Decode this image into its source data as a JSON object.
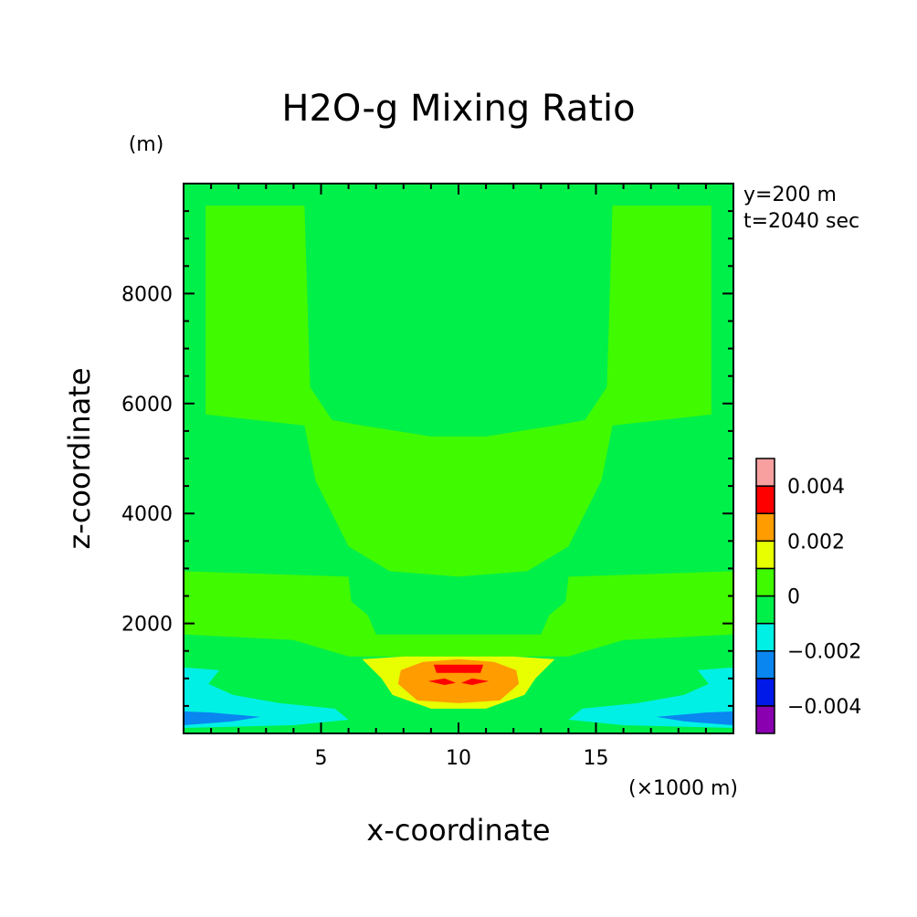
{
  "chart_data": {
    "type": "heatmap",
    "title": "H2O-g Mixing Ratio",
    "xlabel": "x-coordinate",
    "ylabel": "z-coordinate",
    "x_unit_label": "(×1000 m)",
    "y_unit_label": "(m)",
    "annotations": [
      "y=200 m",
      "t=2040 sec"
    ],
    "xlim": [
      0,
      20
    ],
    "ylim": [
      0,
      10000
    ],
    "x_ticks": [
      5,
      10,
      15
    ],
    "y_ticks": [
      2000,
      4000,
      6000,
      8000
    ],
    "colorbar": {
      "levels": [
        {
          "min": -0.005,
          "max": -0.004,
          "color": "#8a00b0"
        },
        {
          "min": -0.004,
          "max": -0.003,
          "color": "#0019e8"
        },
        {
          "min": -0.003,
          "max": -0.002,
          "color": "#0a86f0"
        },
        {
          "min": -0.002,
          "max": -0.001,
          "color": "#00f0e6"
        },
        {
          "min": -0.001,
          "max": 0.0,
          "color": "#00f04a"
        },
        {
          "min": 0.0,
          "max": 0.001,
          "color": "#40fa00"
        },
        {
          "min": 0.001,
          "max": 0.002,
          "color": "#e8ff00"
        },
        {
          "min": 0.002,
          "max": 0.003,
          "color": "#ff9c00"
        },
        {
          "min": 0.003,
          "max": 0.004,
          "color": "#ff0000"
        },
        {
          "min": 0.004,
          "max": 0.005,
          "color": "#f8a0a0"
        }
      ],
      "tick_labels": [
        "0.004",
        "0.002",
        "0",
        "−0.002",
        "−0.004"
      ],
      "tick_values": [
        0.004,
        0.002,
        0,
        -0.002,
        -0.004
      ]
    },
    "regions": [
      {
        "level": "0 to 0.001",
        "color": "#40fa00",
        "points": [
          [
            0.8,
            9600
          ],
          [
            4.4,
            9600
          ],
          [
            4.6,
            6300
          ],
          [
            5.4,
            5700
          ],
          [
            6.5,
            5600
          ],
          [
            9,
            5400
          ],
          [
            11,
            5400
          ],
          [
            13.5,
            5600
          ],
          [
            14.6,
            5700
          ],
          [
            15.4,
            6300
          ],
          [
            15.6,
            9600
          ],
          [
            19.2,
            9600
          ],
          [
            19.2,
            5800
          ],
          [
            15.6,
            5600
          ],
          [
            15.2,
            4600
          ],
          [
            14,
            3400
          ],
          [
            12.5,
            2950
          ],
          [
            10,
            2850
          ],
          [
            7.5,
            2950
          ],
          [
            6,
            3400
          ],
          [
            4.8,
            4600
          ],
          [
            4.4,
            5600
          ],
          [
            0.8,
            5800
          ]
        ]
      },
      {
        "level": "0 to 0.001",
        "color": "#40fa00",
        "points": [
          [
            0,
            2950
          ],
          [
            6,
            2850
          ],
          [
            6.1,
            2400
          ],
          [
            6.7,
            2150
          ],
          [
            7,
            1800
          ],
          [
            13,
            1800
          ],
          [
            13.3,
            2150
          ],
          [
            13.9,
            2400
          ],
          [
            14,
            2850
          ],
          [
            20,
            2950
          ],
          [
            20,
            1800
          ],
          [
            16,
            1700
          ],
          [
            14,
            1400
          ],
          [
            6,
            1400
          ],
          [
            4,
            1700
          ],
          [
            0,
            1800
          ]
        ]
      },
      {
        "level": "0.001 to 0.002",
        "color": "#e8ff00",
        "points": [
          [
            6.5,
            1350
          ],
          [
            8,
            1400
          ],
          [
            10,
            1400
          ],
          [
            12,
            1400
          ],
          [
            13.5,
            1350
          ],
          [
            12.8,
            1000
          ],
          [
            12.4,
            700
          ],
          [
            11,
            450
          ],
          [
            9,
            450
          ],
          [
            7.6,
            700
          ],
          [
            7.2,
            1000
          ]
        ]
      },
      {
        "level": "0.002 to 0.003",
        "color": "#ff9c00",
        "points": [
          [
            7.9,
            1150
          ],
          [
            8.7,
            1300
          ],
          [
            10,
            1350
          ],
          [
            11.3,
            1300
          ],
          [
            12.1,
            1150
          ],
          [
            12.2,
            900
          ],
          [
            11.5,
            600
          ],
          [
            10,
            550
          ],
          [
            8.5,
            600
          ],
          [
            7.8,
            900
          ]
        ]
      },
      {
        "level": "0.003 to 0.004",
        "color": "#ff0000",
        "points": [
          [
            9.1,
            1250
          ],
          [
            10.9,
            1250
          ],
          [
            10.8,
            1100
          ],
          [
            9.2,
            1100
          ]
        ]
      },
      {
        "level": "0.003 to 0.004",
        "color": "#ff0000",
        "points": [
          [
            8.9,
            950
          ],
          [
            9.5,
            1000
          ],
          [
            9.9,
            920
          ],
          [
            9.5,
            880
          ]
        ]
      },
      {
        "level": "0.003 to 0.004",
        "color": "#ff0000",
        "points": [
          [
            10.1,
            920
          ],
          [
            10.5,
            1000
          ],
          [
            11.1,
            950
          ],
          [
            10.5,
            880
          ]
        ]
      },
      {
        "level": "-0.002 to -0.001",
        "color": "#00f0e6",
        "points": [
          [
            0,
            1200
          ],
          [
            1.3,
            1150
          ],
          [
            0.9,
            900
          ],
          [
            1.8,
            700
          ],
          [
            3.5,
            550
          ],
          [
            5.5,
            450
          ],
          [
            6,
            250
          ],
          [
            4,
            150
          ],
          [
            0,
            100
          ]
        ]
      },
      {
        "level": "-0.002 to -0.001",
        "color": "#00f0e6",
        "points": [
          [
            20,
            1200
          ],
          [
            18.7,
            1150
          ],
          [
            19.1,
            900
          ],
          [
            18.2,
            700
          ],
          [
            16.5,
            550
          ],
          [
            14.5,
            450
          ],
          [
            14,
            250
          ],
          [
            16,
            150
          ],
          [
            20,
            100
          ]
        ]
      },
      {
        "level": "-0.003 to -0.002",
        "color": "#0a86f0",
        "points": [
          [
            0,
            400
          ],
          [
            1,
            380
          ],
          [
            2.8,
            300
          ],
          [
            1.8,
            220
          ],
          [
            0,
            150
          ]
        ]
      },
      {
        "level": "-0.003 to -0.002",
        "color": "#0a86f0",
        "points": [
          [
            20,
            400
          ],
          [
            19,
            380
          ],
          [
            17.2,
            300
          ],
          [
            18.2,
            220
          ],
          [
            20,
            150
          ]
        ]
      }
    ]
  }
}
